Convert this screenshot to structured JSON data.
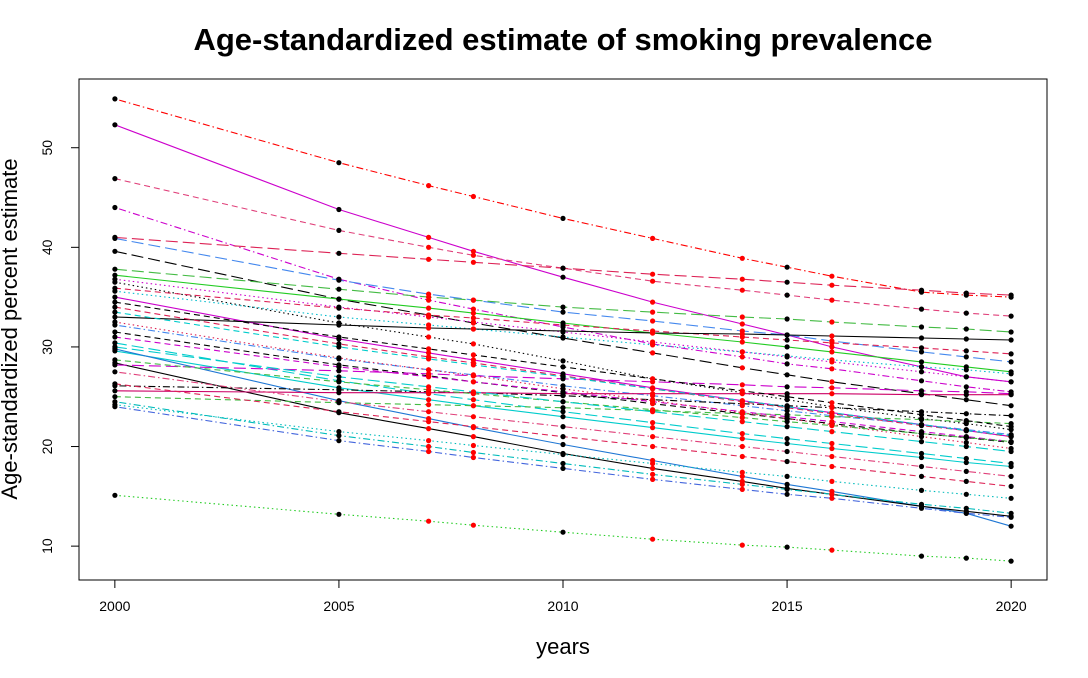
{
  "chart_data": {
    "type": "line",
    "title": "Age-standardized estimate of smoking prevalence",
    "xlabel": "years",
    "ylabel": "Age-standardized percent estimate",
    "xlim": [
      1999.2,
      2020.8
    ],
    "ylim": [
      6.6,
      56.9
    ],
    "x_ticks": [
      2000,
      2005,
      2010,
      2015,
      2020
    ],
    "y_ticks": [
      10,
      20,
      30,
      40,
      50
    ],
    "grid": false,
    "legend": "none",
    "x": [
      2000,
      2005,
      2007,
      2008,
      2010,
      2012,
      2014,
      2015,
      2016,
      2018,
      2019,
      2020
    ],
    "observed_years": [
      2000,
      2005,
      2010,
      2015,
      2018,
      2019,
      2020
    ],
    "projected_years": [
      2007,
      2008,
      2012,
      2014,
      2016
    ],
    "marker_colors": {
      "observed": "#000000",
      "projected": "#ff0000"
    },
    "series": [
      {
        "color": "#ff0000",
        "dash": "dotdash",
        "values": [
          54.9,
          48.5,
          46.2,
          45.1,
          42.9,
          40.9,
          38.9,
          38.0,
          37.1,
          35.5,
          35.2,
          35.0
        ]
      },
      {
        "color": "#cc00cc",
        "dash": "solid",
        "values": [
          52.3,
          43.8,
          41.0,
          39.6,
          37.0,
          34.5,
          32.3,
          31.2,
          30.0,
          28.0,
          27.0,
          26.5
        ]
      },
      {
        "color": "#e0407a",
        "dash": "dashed",
        "values": [
          46.9,
          41.7,
          40.0,
          39.2,
          37.9,
          36.6,
          35.7,
          35.2,
          34.7,
          33.8,
          33.4,
          33.1
        ]
      },
      {
        "color": "#cc00cc",
        "dash": "dotdash",
        "values": [
          44.0,
          36.8,
          34.7,
          33.8,
          32.0,
          30.3,
          29.0,
          28.3,
          27.8,
          26.6,
          26.0,
          25.5
        ]
      },
      {
        "color": "#dd2255",
        "dash": "longdash",
        "values": [
          41.0,
          39.4,
          38.8,
          38.5,
          37.9,
          37.3,
          36.8,
          36.5,
          36.2,
          35.7,
          35.4,
          35.2
        ]
      },
      {
        "color": "#4488ee",
        "dash": "longdash",
        "values": [
          40.9,
          36.7,
          35.3,
          34.7,
          33.5,
          32.6,
          31.6,
          31.2,
          30.6,
          29.5,
          29.0,
          28.5
        ]
      },
      {
        "color": "#000000",
        "dash": "longdash",
        "values": [
          39.6,
          34.8,
          33.2,
          32.4,
          30.9,
          29.4,
          27.9,
          27.2,
          26.5,
          25.3,
          24.7,
          24.1
        ]
      },
      {
        "color": "#44bb44",
        "dash": "longdash",
        "values": [
          37.8,
          35.8,
          35.0,
          34.7,
          34.0,
          33.5,
          33.0,
          32.8,
          32.5,
          32.0,
          31.8,
          31.5
        ]
      },
      {
        "color": "#22cc22",
        "dash": "solid",
        "values": [
          37.2,
          34.8,
          33.9,
          33.4,
          32.4,
          31.4,
          30.5,
          30.0,
          29.5,
          28.5,
          28.0,
          27.5
        ]
      },
      {
        "color": "#cc00cc",
        "dash": "dotted",
        "values": [
          36.8,
          34.0,
          33.0,
          32.5,
          31.5,
          30.5,
          29.5,
          29.0,
          28.5,
          27.5,
          27.0,
          26.5
        ]
      },
      {
        "color": "#000000",
        "dash": "dotted",
        "values": [
          36.5,
          32.4,
          31.0,
          30.3,
          28.6,
          26.8,
          25.4,
          24.7,
          24.0,
          22.8,
          22.3,
          21.7
        ]
      },
      {
        "color": "#dd2255",
        "dash": "dashed",
        "values": [
          35.9,
          33.9,
          33.2,
          32.9,
          32.2,
          31.6,
          31.0,
          30.7,
          30.4,
          29.9,
          29.6,
          29.3
        ]
      },
      {
        "color": "#00bbcc",
        "dash": "dotted",
        "values": [
          35.6,
          33.0,
          32.2,
          31.8,
          31.0,
          30.2,
          29.5,
          29.1,
          28.7,
          28.0,
          27.7,
          27.3
        ]
      },
      {
        "color": "#cc00cc",
        "dash": "solid",
        "values": [
          35.0,
          30.8,
          29.4,
          28.7,
          27.3,
          25.9,
          24.6,
          24.0,
          23.4,
          22.2,
          21.6,
          21.0
        ]
      },
      {
        "color": "#000000",
        "dash": "solid",
        "values": [
          33.0,
          32.2,
          31.9,
          31.8,
          31.6,
          31.4,
          31.3,
          31.2,
          31.1,
          30.9,
          30.8,
          30.7
        ]
      },
      {
        "color": "#4488ee",
        "dash": "dotdash",
        "values": [
          32.2,
          28.8,
          27.7,
          27.2,
          26.1,
          25.1,
          24.1,
          23.6,
          23.1,
          22.2,
          21.7,
          21.2
        ]
      },
      {
        "color": "#000000",
        "dash": "dashed",
        "values": [
          31.5,
          28.2,
          27.1,
          26.5,
          25.4,
          24.3,
          23.3,
          22.8,
          22.3,
          21.3,
          20.9,
          20.4
        ]
      },
      {
        "color": "#00cccc",
        "dash": "longdash",
        "values": [
          30.4,
          26.6,
          25.3,
          24.7,
          23.5,
          22.4,
          21.3,
          20.8,
          20.3,
          19.3,
          18.8,
          18.3
        ]
      },
      {
        "color": "#00cccc",
        "dash": "solid",
        "values": [
          29.6,
          25.9,
          24.7,
          24.1,
          23.0,
          21.9,
          20.8,
          20.3,
          19.8,
          18.9,
          18.4,
          18.0
        ]
      },
      {
        "color": "#1f77d4",
        "dash": "solid",
        "values": [
          29.8,
          24.6,
          22.8,
          21.9,
          20.2,
          18.6,
          17.0,
          16.2,
          15.5,
          14.0,
          13.3,
          12.0
        ]
      },
      {
        "color": "#000000",
        "dash": "solid",
        "values": [
          28.4,
          23.4,
          21.8,
          21.0,
          19.3,
          17.8,
          16.5,
          15.8,
          15.2,
          14.0,
          13.5,
          13.0
        ]
      },
      {
        "color": "#cc00cc",
        "dash": "longdash",
        "values": [
          28.2,
          27.6,
          27.3,
          27.1,
          26.8,
          26.5,
          26.2,
          26.0,
          25.9,
          25.6,
          25.5,
          25.3
        ]
      },
      {
        "color": "#000000",
        "dash": "dotdash",
        "values": [
          26.1,
          25.7,
          25.5,
          25.4,
          25.1,
          24.7,
          24.3,
          24.1,
          23.9,
          23.5,
          23.3,
          23.1
        ]
      },
      {
        "color": "#cc0066",
        "dash": "solid",
        "values": [
          25.6,
          25.4,
          25.4,
          25.4,
          25.3,
          25.3,
          25.3,
          25.3,
          25.3,
          25.2,
          25.2,
          25.2
        ]
      },
      {
        "color": "#44bb44",
        "dash": "dashed",
        "values": [
          25.0,
          24.4,
          24.2,
          24.1,
          23.9,
          23.6,
          23.3,
          23.2,
          23.0,
          22.7,
          22.5,
          22.3
        ]
      },
      {
        "color": "#00bbbb",
        "dash": "dotdash",
        "values": [
          24.5,
          21.1,
          20.0,
          19.4,
          18.3,
          17.2,
          16.2,
          15.7,
          15.2,
          14.2,
          13.8,
          13.3
        ]
      },
      {
        "color": "#00bbbb",
        "dash": "dotted",
        "values": [
          24.2,
          21.5,
          20.6,
          20.1,
          19.2,
          18.3,
          17.4,
          17.0,
          16.5,
          15.6,
          15.2,
          14.8
        ]
      },
      {
        "color": "#4466dd",
        "dash": "dotdash",
        "values": [
          24.0,
          20.6,
          19.5,
          18.9,
          17.8,
          16.7,
          15.7,
          15.2,
          14.8,
          13.8,
          13.3,
          12.9
        ]
      },
      {
        "color": "#22cc22",
        "dash": "dotted",
        "values": [
          15.1,
          13.2,
          12.5,
          12.1,
          11.4,
          10.7,
          10.1,
          9.9,
          9.6,
          9.0,
          8.8,
          8.5
        ]
      },
      {
        "color": "#dd2255",
        "dash": "dashed",
        "values": [
          34.0,
          30.3,
          29.0,
          28.4,
          27.1,
          25.8,
          24.5,
          23.9,
          23.3,
          22.1,
          21.6,
          21.0
        ]
      },
      {
        "color": "#cc00cc",
        "dash": "dashed",
        "values": [
          31.0,
          28.0,
          27.0,
          26.5,
          25.5,
          24.5,
          23.5,
          23.0,
          22.5,
          21.5,
          21.0,
          20.5
        ]
      },
      {
        "color": "#00cccc",
        "dash": "dashed",
        "values": [
          33.5,
          30.0,
          28.8,
          28.2,
          27.0,
          25.8,
          24.6,
          24.0,
          23.4,
          22.2,
          21.6,
          21.1
        ]
      },
      {
        "color": "#dd2255",
        "dash": "dotted",
        "values": [
          32.5,
          28.9,
          27.7,
          27.1,
          25.8,
          24.6,
          23.4,
          22.8,
          22.2,
          21.0,
          20.4,
          19.8
        ]
      },
      {
        "color": "#44bb44",
        "dash": "dashed",
        "values": [
          28.7,
          26.5,
          25.7,
          25.3,
          24.5,
          23.7,
          22.9,
          22.5,
          22.1,
          21.3,
          20.9,
          20.5
        ]
      },
      {
        "color": "#e0407a",
        "dash": "dotdash",
        "values": [
          27.5,
          24.5,
          23.5,
          23.0,
          22.0,
          21.0,
          20.0,
          19.5,
          19.0,
          18.0,
          17.5,
          17.0
        ]
      },
      {
        "color": "#dd2255",
        "dash": "dashed",
        "values": [
          26.3,
          23.5,
          22.5,
          22.0,
          21.0,
          20.0,
          19.0,
          18.5,
          18.0,
          17.0,
          16.5,
          16.0
        ]
      },
      {
        "color": "#00cccc",
        "dash": "longdash",
        "values": [
          30.0,
          27.0,
          26.0,
          25.5,
          24.5,
          23.5,
          22.5,
          22.0,
          21.5,
          20.5,
          20.0,
          19.5
        ]
      },
      {
        "color": "#000000",
        "dash": "dashed",
        "values": [
          34.5,
          31.0,
          29.8,
          29.2,
          28.0,
          26.8,
          25.6,
          25.0,
          24.4,
          23.2,
          22.6,
          22.0
        ]
      }
    ]
  }
}
